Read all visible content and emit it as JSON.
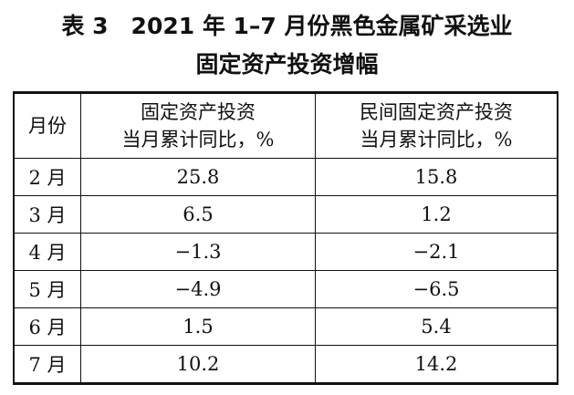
{
  "header": {
    "title": [
      "表 3　2021 年 1–7 月份黑色金属矿采选业",
      "固定资产投资增幅"
    ]
  },
  "table": {
    "columns": [
      [
        "月份"
      ],
      [
        "固定资产投资",
        "当月累计同比，%"
      ],
      [
        "民间固定资产投资",
        "当月累计同比，%"
      ]
    ],
    "rows": [
      [
        "2 月",
        "25.8",
        "15.8"
      ],
      [
        "3 月",
        "6.5",
        "1.2"
      ],
      [
        "4 月",
        "−1.3",
        "−2.1"
      ],
      [
        "5 月",
        "−4.9",
        "−6.5"
      ],
      [
        "6 月",
        "1.5",
        "5.4"
      ],
      [
        "7 月",
        "10.2",
        "14.2"
      ]
    ]
  }
}
